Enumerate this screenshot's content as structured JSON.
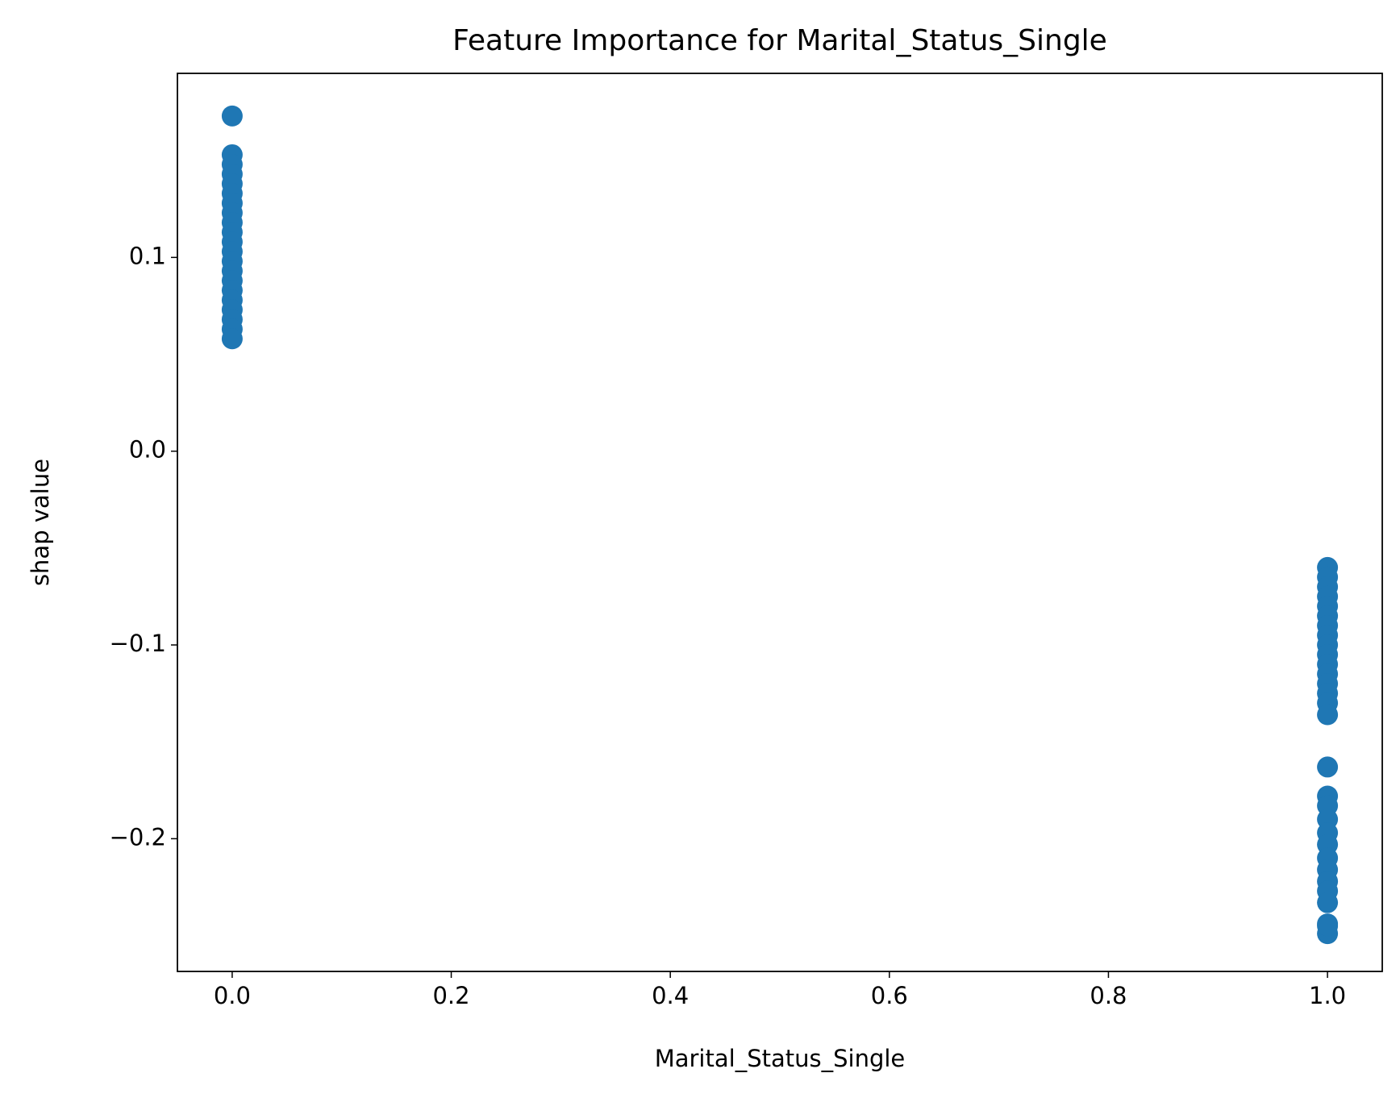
{
  "chart_data": {
    "type": "scatter",
    "title": "Feature Importance for Marital_Status_Single",
    "x_label": "Marital_Status_Single",
    "y_label": "shap value",
    "series": [
      {
        "color": "#1f77b4",
        "x": [
          0,
          0,
          0,
          0,
          0,
          0,
          0,
          0,
          0,
          0,
          0,
          0,
          0,
          0,
          0,
          0,
          0,
          0,
          0,
          0,
          0,
          1,
          1,
          1,
          1,
          1,
          1,
          1,
          1,
          1,
          1,
          1,
          1,
          1,
          1,
          1,
          1,
          1,
          1,
          1,
          1,
          1,
          1,
          1,
          1,
          1,
          1,
          1,
          1,
          1,
          1
        ],
        "values": [
          0.173,
          0.153,
          0.148,
          0.143,
          0.138,
          0.133,
          0.128,
          0.123,
          0.118,
          0.113,
          0.108,
          0.103,
          0.098,
          0.093,
          0.088,
          0.083,
          0.078,
          0.073,
          0.068,
          0.063,
          0.058,
          -0.06,
          -0.065,
          -0.07,
          -0.075,
          -0.08,
          -0.085,
          -0.09,
          -0.095,
          -0.1,
          -0.105,
          -0.11,
          -0.115,
          -0.12,
          -0.125,
          -0.13,
          -0.136,
          -0.163,
          -0.178,
          -0.183,
          -0.19,
          -0.197,
          -0.203,
          -0.21,
          -0.216,
          -0.222,
          -0.227,
          -0.233,
          -0.244,
          -0.249,
          -0.245
        ]
      }
    ],
    "xlim": [
      -0.05,
      1.05
    ],
    "xticks": [
      {
        "value": 0,
        "label": "0.0"
      },
      0.2,
      0.4,
      0.6,
      0.8,
      {
        "value": 1,
        "label": "1.0"
      }
    ],
    "ylim": [
      -0.2685,
      0.195
    ],
    "yticks": [
      {
        "value": -0.2,
        "label": "−0.2"
      },
      {
        "value": -0.1,
        "label": "−0.1"
      },
      {
        "value": 0,
        "label": "0.0"
      },
      0.1
    ],
    "grid": false
  }
}
